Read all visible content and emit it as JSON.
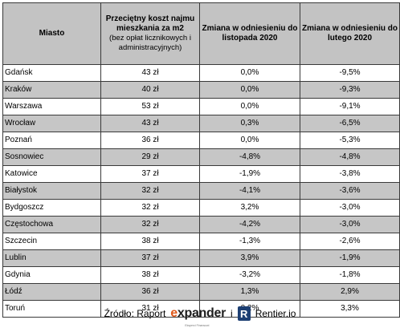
{
  "table": {
    "headers": {
      "city": "Miasto",
      "price_main": "Przeciętny koszt najmu mieszkania za m2",
      "price_note": "(bez opłat licznikowych i administracyjnych)",
      "change_nov": "Zmiana w odniesieniu do listopada 2020",
      "change_feb": "Zmiana w odniesieniu do lutego 2020"
    },
    "rows": [
      {
        "city": "Gdańsk",
        "price": "43 zł",
        "nov": "0,0%",
        "feb": "-9,5%"
      },
      {
        "city": "Kraków",
        "price": "40 zł",
        "nov": "0,0%",
        "feb": "-9,3%"
      },
      {
        "city": "Warszawa",
        "price": "53 zł",
        "nov": "0,0%",
        "feb": "-9,1%"
      },
      {
        "city": "Wrocław",
        "price": "43 zł",
        "nov": "0,3%",
        "feb": "-6,5%"
      },
      {
        "city": "Poznań",
        "price": "36 zł",
        "nov": "0,0%",
        "feb": "-5,3%"
      },
      {
        "city": "Sosnowiec",
        "price": "29 zł",
        "nov": "-4,8%",
        "feb": "-4,8%"
      },
      {
        "city": "Katowice",
        "price": "37 zł",
        "nov": "-1,9%",
        "feb": "-3,8%"
      },
      {
        "city": "Białystok",
        "price": "32 zł",
        "nov": "-4,1%",
        "feb": "-3,6%"
      },
      {
        "city": "Bydgoszcz",
        "price": "32 zł",
        "nov": "3,2%",
        "feb": "-3,0%"
      },
      {
        "city": "Częstochowa",
        "price": "32 zł",
        "nov": "-4,2%",
        "feb": "-3,0%"
      },
      {
        "city": "Szczecin",
        "price": "38 zł",
        "nov": "-1,3%",
        "feb": "-2,6%"
      },
      {
        "city": "Lublin",
        "price": "37 zł",
        "nov": "3,9%",
        "feb": "-1,9%"
      },
      {
        "city": "Gdynia",
        "price": "38 zł",
        "nov": "-3,2%",
        "feb": "-1,8%"
      },
      {
        "city": "Łódź",
        "price": "36 zł",
        "nov": "1,3%",
        "feb": "2,9%"
      },
      {
        "city": "Toruń",
        "price": "31 zł",
        "nov": "0,2%",
        "feb": "3,3%"
      }
    ]
  },
  "footer": {
    "source_label": "Źródło: Raport",
    "expander_x": "e",
    "expander_rest": "xpander",
    "expander_tagline": "Eksperci Finansowi",
    "connector": "i",
    "rentier_logo_letter": "R",
    "rentier_name": "Rentier.io"
  },
  "colors": {
    "header_bg": "#c3c3c3",
    "stripe_bg": "#c6c6c6",
    "expander_accent": "#e05a1c",
    "rentier_blue": "#1d3f73"
  }
}
